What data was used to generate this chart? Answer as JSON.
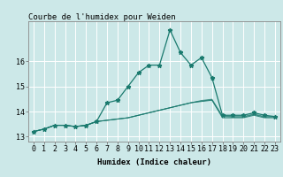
{
  "title": "Courbe de l'humidex pour Weiden",
  "xlabel": "Humidex (Indice chaleur)",
  "bg_color": "#cce8e8",
  "grid_color": "#ffffff",
  "line_color": "#1a7a6e",
  "x_values": [
    0,
    1,
    2,
    3,
    4,
    5,
    6,
    7,
    8,
    9,
    10,
    11,
    12,
    13,
    14,
    15,
    16,
    17,
    18,
    19,
    20,
    21,
    22,
    23
  ],
  "line_main": [
    13.2,
    13.3,
    13.45,
    13.45,
    13.4,
    13.45,
    13.6,
    14.35,
    14.45,
    15.0,
    15.55,
    15.85,
    15.85,
    17.25,
    16.35,
    15.85,
    16.15,
    15.35,
    13.85,
    13.85,
    13.85,
    13.95,
    13.85,
    13.8
  ],
  "line2": [
    13.2,
    13.3,
    13.45,
    13.45,
    13.4,
    13.45,
    13.6,
    13.65,
    13.7,
    13.75,
    13.85,
    13.95,
    14.05,
    14.15,
    14.25,
    14.35,
    14.4,
    14.45,
    13.75,
    13.75,
    13.75,
    13.85,
    13.75,
    13.75
  ],
  "line3": [
    13.2,
    13.3,
    13.45,
    13.45,
    13.4,
    13.45,
    13.6,
    13.65,
    13.7,
    13.75,
    13.85,
    13.95,
    14.05,
    14.15,
    14.25,
    14.35,
    14.42,
    14.47,
    13.8,
    13.78,
    13.78,
    13.88,
    13.78,
    13.78
  ],
  "line4": [
    13.2,
    13.3,
    13.45,
    13.45,
    13.4,
    13.45,
    13.6,
    13.65,
    13.7,
    13.75,
    13.85,
    13.95,
    14.05,
    14.15,
    14.25,
    14.35,
    14.44,
    14.49,
    13.82,
    13.8,
    13.8,
    13.9,
    13.8,
    13.8
  ],
  "ylim": [
    12.8,
    17.6
  ],
  "yticks": [
    13,
    14,
    15,
    16
  ],
  "ytick_extra": 17,
  "xlim": [
    -0.5,
    23.5
  ],
  "title_fontsize": 6.5,
  "axis_fontsize": 6.5,
  "tick_fontsize": 6.0
}
